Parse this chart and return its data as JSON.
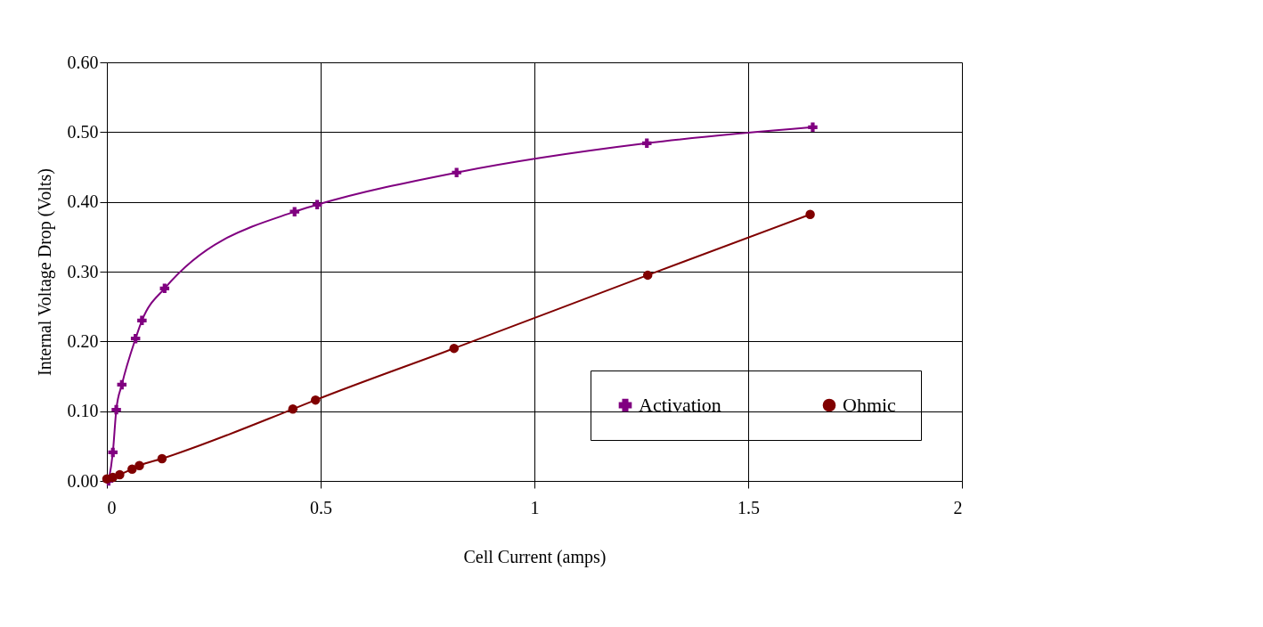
{
  "chart_data": {
    "type": "line",
    "xlabel": "Cell Current (amps)",
    "ylabel": "Internal Voltage Drop (Volts)",
    "xlim": [
      0,
      2
    ],
    "xticks": [
      0,
      0.5,
      1,
      1.5,
      2
    ],
    "ylim": [
      0,
      0.6
    ],
    "yticks": [
      {
        "value": 0,
        "label": "0.00"
      },
      {
        "value": 0.1,
        "label": "0.10"
      },
      {
        "value": 0.2,
        "label": "0.20"
      },
      {
        "value": 0.3,
        "label": "0.30"
      },
      {
        "value": 0.4,
        "label": "0.40"
      },
      {
        "value": 0.5,
        "label": "0.50"
      },
      {
        "value": 0.6,
        "label": "0.60"
      }
    ],
    "grid": true,
    "legend": "bottom right",
    "series": [
      {
        "name": "Activation",
        "color": "#800080",
        "marker": "cross",
        "x": [
          0.004,
          0.014,
          0.022,
          0.035,
          0.067,
          0.082,
          0.135,
          0.439,
          0.492,
          0.818,
          1.263,
          1.651
        ],
        "values": [
          0.0,
          0.041,
          0.102,
          0.138,
          0.204,
          0.23,
          0.276,
          0.386,
          0.396,
          0.442,
          0.484,
          0.507
        ]
      },
      {
        "name": "Ohmic",
        "color": "#800000",
        "marker": "circle",
        "x": [
          0.0,
          0.014,
          0.03,
          0.059,
          0.076,
          0.129,
          0.435,
          0.488,
          0.812,
          1.265,
          1.645
        ],
        "values": [
          0.003,
          0.005,
          0.009,
          0.017,
          0.022,
          0.032,
          0.103,
          0.116,
          0.19,
          0.295,
          0.382
        ]
      }
    ]
  }
}
